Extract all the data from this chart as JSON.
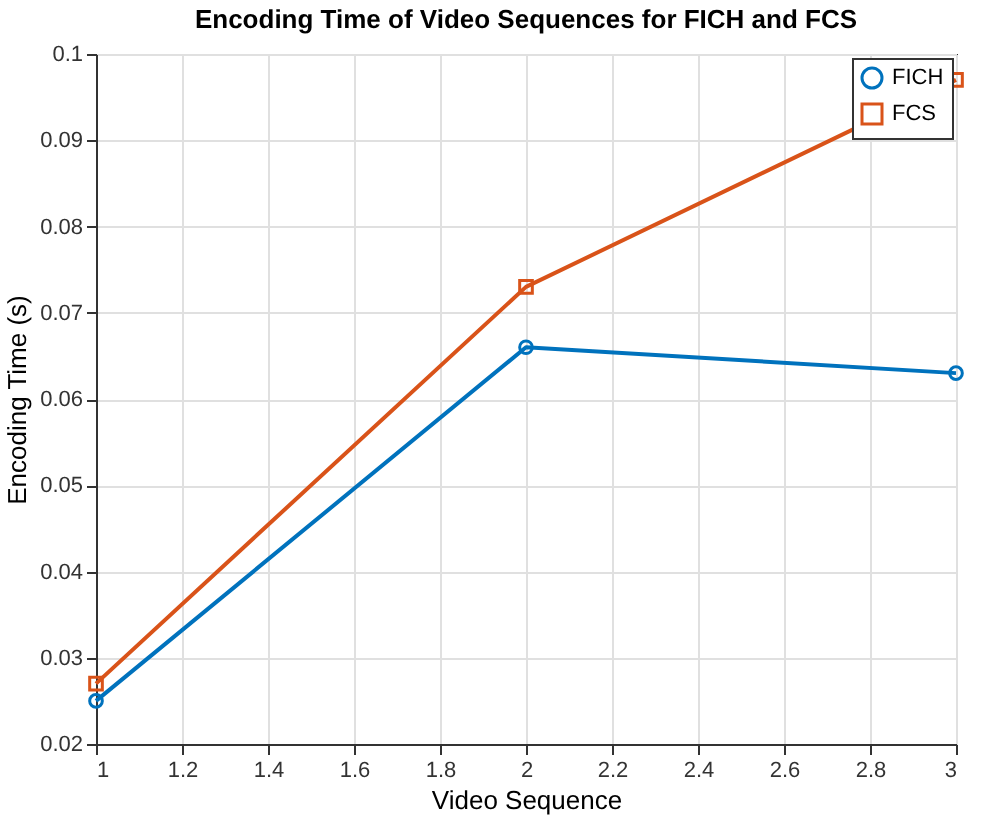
{
  "chart_data": {
    "type": "line",
    "title": "Encoding Time of Video Sequences for FICH and FCS",
    "xlabel": "Video Sequence",
    "ylabel": "Encoding Time (s)",
    "x": [
      1,
      2,
      3
    ],
    "series": [
      {
        "name": "FICH",
        "color": "#0072bd",
        "marker": "circle",
        "values": [
          0.025,
          0.066,
          0.063
        ]
      },
      {
        "name": "FCS",
        "color": "#d95319",
        "marker": "square",
        "values": [
          0.027,
          0.073,
          0.097
        ]
      }
    ],
    "xlim": [
      1,
      3
    ],
    "xticks": [
      1,
      1.2,
      1.4,
      1.6,
      1.8,
      2,
      2.2,
      2.4,
      2.6,
      2.8,
      3
    ],
    "ylim": [
      0.02,
      0.1
    ],
    "yticks": [
      0.02,
      0.03,
      0.04,
      0.05,
      0.06,
      0.07,
      0.08,
      0.09,
      0.1
    ],
    "grid": true,
    "legend": "top right",
    "line_style": "solid"
  }
}
